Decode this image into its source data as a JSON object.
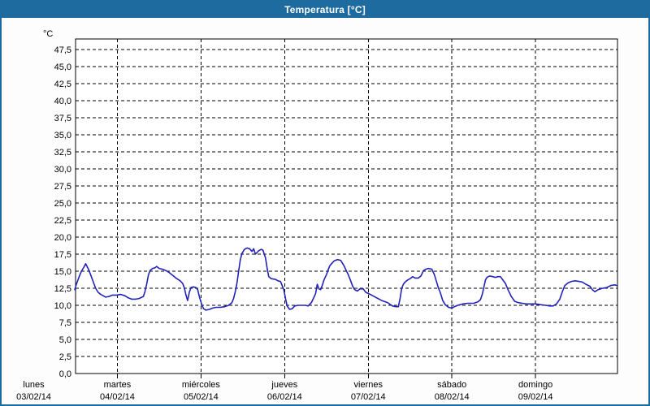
{
  "window": {
    "title": "Temperatura [°C]"
  },
  "colors": {
    "frame": "#1d6b9f",
    "titlebar_bg": "#1d6b9f",
    "titlebar_text": "#ffffff",
    "plot_bg": "#ffffff",
    "grid": "#000000",
    "axis": "#000000",
    "line": "#2222bb"
  },
  "chart_data": {
    "type": "line",
    "title": "Temperatura [°C]",
    "legend_position": "none",
    "grid": {
      "horizontal": true,
      "vertical": true,
      "style": "dashed"
    },
    "y_axis": {
      "unit_label": "°C",
      "min": 0,
      "max": 49,
      "tick_step": 2.5,
      "top_tick": 47.5,
      "tick_labels": [
        "0,0",
        "2,5",
        "5,0",
        "7,5",
        "10,0",
        "12,5",
        "15,0",
        "17,5",
        "20,0",
        "22,5",
        "25,0",
        "27,5",
        "30,0",
        "32,5",
        "35,0",
        "37,5",
        "40,0",
        "42,5",
        "45,0",
        "47,5"
      ]
    },
    "x_axis": {
      "start_day_offset": 0.5,
      "end_day_offset": 6.98,
      "gridline_days": [
        1,
        2,
        3,
        4,
        5,
        6
      ],
      "day_ticks": [
        {
          "day": 0,
          "label": "lunes",
          "date": "03/02/14"
        },
        {
          "day": 1,
          "label": "martes",
          "date": "04/02/14"
        },
        {
          "day": 2,
          "label": "miércoles",
          "date": "05/02/14"
        },
        {
          "day": 3,
          "label": "jueves",
          "date": "06/02/14"
        },
        {
          "day": 4,
          "label": "viernes",
          "date": "07/02/14"
        },
        {
          "day": 5,
          "label": "sábado",
          "date": "08/02/14"
        },
        {
          "day": 6,
          "label": "domingo",
          "date": "09/02/14"
        }
      ]
    },
    "series": [
      {
        "name": "Temperatura",
        "color": "#2222bb",
        "points": [
          [
            0.49,
            12.3
          ],
          [
            0.51,
            13.1
          ],
          [
            0.54,
            14.1
          ],
          [
            0.57,
            15.0
          ],
          [
            0.6,
            15.6
          ],
          [
            0.62,
            16.1
          ],
          [
            0.65,
            15.4
          ],
          [
            0.68,
            14.5
          ],
          [
            0.71,
            13.5
          ],
          [
            0.74,
            12.5
          ],
          [
            0.77,
            11.9
          ],
          [
            0.8,
            11.6
          ],
          [
            0.83,
            11.4
          ],
          [
            0.86,
            11.2
          ],
          [
            0.9,
            11.3
          ],
          [
            0.94,
            11.5
          ],
          [
            0.99,
            11.5
          ],
          [
            1.04,
            11.6
          ],
          [
            1.09,
            11.4
          ],
          [
            1.13,
            11.1
          ],
          [
            1.17,
            10.9
          ],
          [
            1.22,
            10.9
          ],
          [
            1.26,
            11.0
          ],
          [
            1.31,
            11.3
          ],
          [
            1.33,
            12.0
          ],
          [
            1.35,
            13.1
          ],
          [
            1.37,
            14.4
          ],
          [
            1.39,
            15.1
          ],
          [
            1.42,
            15.4
          ],
          [
            1.45,
            15.5
          ],
          [
            1.47,
            15.7
          ],
          [
            1.5,
            15.4
          ],
          [
            1.54,
            15.3
          ],
          [
            1.58,
            15.1
          ],
          [
            1.62,
            14.8
          ],
          [
            1.66,
            14.4
          ],
          [
            1.7,
            14.0
          ],
          [
            1.75,
            13.6
          ],
          [
            1.78,
            13.2
          ],
          [
            1.8,
            12.6
          ],
          [
            1.82,
            11.5
          ],
          [
            1.84,
            10.7
          ],
          [
            1.86,
            11.9
          ],
          [
            1.88,
            12.6
          ],
          [
            1.91,
            12.7
          ],
          [
            1.94,
            12.6
          ],
          [
            1.96,
            12.3
          ],
          [
            1.98,
            11.3
          ],
          [
            2.01,
            10.1
          ],
          [
            2.03,
            9.5
          ],
          [
            2.06,
            9.3
          ],
          [
            2.1,
            9.4
          ],
          [
            2.14,
            9.6
          ],
          [
            2.18,
            9.7
          ],
          [
            2.23,
            9.7
          ],
          [
            2.28,
            9.8
          ],
          [
            2.33,
            10.0
          ],
          [
            2.37,
            10.4
          ],
          [
            2.39,
            11.0
          ],
          [
            2.41,
            12.0
          ],
          [
            2.43,
            13.3
          ],
          [
            2.45,
            15.0
          ],
          [
            2.47,
            16.7
          ],
          [
            2.49,
            17.6
          ],
          [
            2.52,
            18.2
          ],
          [
            2.55,
            18.4
          ],
          [
            2.58,
            18.3
          ],
          [
            2.61,
            17.9
          ],
          [
            2.63,
            18.3
          ],
          [
            2.65,
            17.5
          ],
          [
            2.69,
            18.0
          ],
          [
            2.72,
            18.2
          ],
          [
            2.74,
            18.1
          ],
          [
            2.77,
            17.0
          ],
          [
            2.79,
            15.5
          ],
          [
            2.81,
            14.2
          ],
          [
            2.84,
            13.9
          ],
          [
            2.89,
            13.8
          ],
          [
            2.92,
            13.6
          ],
          [
            2.95,
            13.5
          ],
          [
            2.97,
            12.9
          ],
          [
            2.99,
            12.3
          ],
          [
            3.01,
            11.0
          ],
          [
            3.03,
            9.9
          ],
          [
            3.06,
            9.4
          ],
          [
            3.09,
            9.5
          ],
          [
            3.12,
            9.9
          ],
          [
            3.16,
            10.0
          ],
          [
            3.21,
            10.0
          ],
          [
            3.25,
            10.0
          ],
          [
            3.28,
            9.9
          ],
          [
            3.32,
            10.4
          ],
          [
            3.34,
            10.9
          ],
          [
            3.37,
            11.7
          ],
          [
            3.39,
            13.1
          ],
          [
            3.41,
            12.4
          ],
          [
            3.43,
            12.3
          ],
          [
            3.45,
            12.9
          ],
          [
            3.47,
            13.7
          ],
          [
            3.5,
            14.5
          ],
          [
            3.52,
            15.2
          ],
          [
            3.54,
            15.8
          ],
          [
            3.56,
            16.1
          ],
          [
            3.59,
            16.5
          ],
          [
            3.63,
            16.7
          ],
          [
            3.67,
            16.6
          ],
          [
            3.71,
            15.8
          ],
          [
            3.74,
            15.0
          ],
          [
            3.76,
            14.5
          ],
          [
            3.79,
            13.6
          ],
          [
            3.81,
            12.9
          ],
          [
            3.83,
            12.4
          ],
          [
            3.85,
            12.2
          ],
          [
            3.87,
            12.1
          ],
          [
            3.9,
            12.4
          ],
          [
            3.94,
            12.4
          ],
          [
            3.97,
            11.9
          ],
          [
            4.04,
            11.5
          ],
          [
            4.1,
            11.1
          ],
          [
            4.16,
            10.7
          ],
          [
            4.23,
            10.4
          ],
          [
            4.29,
            9.9
          ],
          [
            4.33,
            9.8
          ],
          [
            4.36,
            9.8
          ],
          [
            4.38,
            11.0
          ],
          [
            4.4,
            12.5
          ],
          [
            4.42,
            13.1
          ],
          [
            4.44,
            13.4
          ],
          [
            4.47,
            13.7
          ],
          [
            4.5,
            13.9
          ],
          [
            4.53,
            14.2
          ],
          [
            4.56,
            14.0
          ],
          [
            4.6,
            14.0
          ],
          [
            4.63,
            14.3
          ],
          [
            4.66,
            15.1
          ],
          [
            4.69,
            15.3
          ],
          [
            4.72,
            15.4
          ],
          [
            4.76,
            15.3
          ],
          [
            4.79,
            14.5
          ],
          [
            4.82,
            13.3
          ],
          [
            4.84,
            12.5
          ],
          [
            4.86,
            11.9
          ],
          [
            4.89,
            10.7
          ],
          [
            4.92,
            10.1
          ],
          [
            4.96,
            9.7
          ],
          [
            5.0,
            9.6
          ],
          [
            5.03,
            9.8
          ],
          [
            5.07,
            10.0
          ],
          [
            5.13,
            10.2
          ],
          [
            5.19,
            10.3
          ],
          [
            5.26,
            10.3
          ],
          [
            5.31,
            10.5
          ],
          [
            5.34,
            10.8
          ],
          [
            5.36,
            11.5
          ],
          [
            5.38,
            12.5
          ],
          [
            5.4,
            13.7
          ],
          [
            5.42,
            14.1
          ],
          [
            5.45,
            14.3
          ],
          [
            5.49,
            14.2
          ],
          [
            5.52,
            14.1
          ],
          [
            5.55,
            14.2
          ],
          [
            5.58,
            14.2
          ],
          [
            5.61,
            13.7
          ],
          [
            5.64,
            13.2
          ],
          [
            5.67,
            12.3
          ],
          [
            5.71,
            11.3
          ],
          [
            5.75,
            10.6
          ],
          [
            5.79,
            10.4
          ],
          [
            5.84,
            10.3
          ],
          [
            5.89,
            10.2
          ],
          [
            5.95,
            10.2
          ],
          [
            6.0,
            10.2
          ],
          [
            6.06,
            10.1
          ],
          [
            6.12,
            10.0
          ],
          [
            6.17,
            9.9
          ],
          [
            6.21,
            9.9
          ],
          [
            6.25,
            10.2
          ],
          [
            6.29,
            10.9
          ],
          [
            6.32,
            12.0
          ],
          [
            6.35,
            12.9
          ],
          [
            6.39,
            13.3
          ],
          [
            6.43,
            13.5
          ],
          [
            6.47,
            13.6
          ],
          [
            6.52,
            13.5
          ],
          [
            6.56,
            13.4
          ],
          [
            6.6,
            13.1
          ],
          [
            6.65,
            12.8
          ],
          [
            6.68,
            12.3
          ],
          [
            6.71,
            12.0
          ],
          [
            6.75,
            12.3
          ],
          [
            6.8,
            12.5
          ],
          [
            6.85,
            12.6
          ],
          [
            6.9,
            12.9
          ],
          [
            6.95,
            13.0
          ],
          [
            6.97,
            12.9
          ]
        ]
      }
    ]
  }
}
